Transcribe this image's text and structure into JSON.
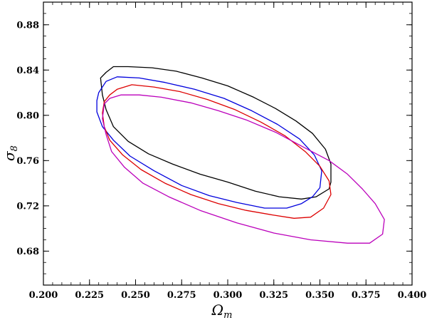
{
  "chart_data": {
    "type": "line",
    "title": "",
    "xlabel": "Ω",
    "xlabel_sub": "m",
    "ylabel": "σ",
    "ylabel_sub": "8",
    "xlim": [
      0.2,
      0.4
    ],
    "ylim": [
      0.65,
      0.9
    ],
    "x_ticks": [
      "0.200",
      "0.225",
      "0.250",
      "0.275",
      "0.300",
      "0.325",
      "0.350",
      "0.375",
      "0.400"
    ],
    "y_ticks": [
      "0.68",
      "0.72",
      "0.76",
      "0.80",
      "0.84",
      "0.88"
    ],
    "grid": false,
    "legend": "none",
    "series": [
      {
        "color": "#000000",
        "closed": true,
        "points": [
          [
            0.231,
            0.833
          ],
          [
            0.234,
            0.838
          ],
          [
            0.238,
            0.843
          ],
          [
            0.246,
            0.843
          ],
          [
            0.259,
            0.842
          ],
          [
            0.272,
            0.839
          ],
          [
            0.286,
            0.833
          ],
          [
            0.3,
            0.826
          ],
          [
            0.314,
            0.816
          ],
          [
            0.326,
            0.806
          ],
          [
            0.337,
            0.795
          ],
          [
            0.346,
            0.784
          ],
          [
            0.353,
            0.77
          ],
          [
            0.356,
            0.757
          ],
          [
            0.356,
            0.741
          ],
          [
            0.355,
            0.735
          ],
          [
            0.348,
            0.728
          ],
          [
            0.34,
            0.726
          ],
          [
            0.328,
            0.728
          ],
          [
            0.315,
            0.733
          ],
          [
            0.3,
            0.741
          ],
          [
            0.285,
            0.748
          ],
          [
            0.27,
            0.757
          ],
          [
            0.257,
            0.766
          ],
          [
            0.246,
            0.777
          ],
          [
            0.238,
            0.79
          ],
          [
            0.234,
            0.805
          ],
          [
            0.232,
            0.818
          ],
          [
            0.231,
            0.833
          ]
        ]
      },
      {
        "color": "#0000dd",
        "closed": true,
        "points": [
          [
            0.23,
            0.82
          ],
          [
            0.234,
            0.83
          ],
          [
            0.24,
            0.834
          ],
          [
            0.252,
            0.833
          ],
          [
            0.266,
            0.829
          ],
          [
            0.282,
            0.823
          ],
          [
            0.298,
            0.815
          ],
          [
            0.313,
            0.804
          ],
          [
            0.327,
            0.792
          ],
          [
            0.339,
            0.779
          ],
          [
            0.347,
            0.765
          ],
          [
            0.351,
            0.751
          ],
          [
            0.35,
            0.736
          ],
          [
            0.346,
            0.728
          ],
          [
            0.34,
            0.722
          ],
          [
            0.332,
            0.718
          ],
          [
            0.32,
            0.718
          ],
          [
            0.305,
            0.723
          ],
          [
            0.29,
            0.729
          ],
          [
            0.275,
            0.738
          ],
          [
            0.26,
            0.751
          ],
          [
            0.247,
            0.764
          ],
          [
            0.238,
            0.778
          ],
          [
            0.232,
            0.79
          ],
          [
            0.229,
            0.803
          ],
          [
            0.229,
            0.813
          ],
          [
            0.23,
            0.82
          ]
        ]
      },
      {
        "color": "#dd0000",
        "closed": true,
        "points": [
          [
            0.233,
            0.812
          ],
          [
            0.236,
            0.818
          ],
          [
            0.24,
            0.823
          ],
          [
            0.248,
            0.827
          ],
          [
            0.26,
            0.825
          ],
          [
            0.274,
            0.821
          ],
          [
            0.289,
            0.814
          ],
          [
            0.304,
            0.805
          ],
          [
            0.318,
            0.794
          ],
          [
            0.331,
            0.782
          ],
          [
            0.342,
            0.768
          ],
          [
            0.35,
            0.755
          ],
          [
            0.355,
            0.742
          ],
          [
            0.356,
            0.73
          ],
          [
            0.352,
            0.718
          ],
          [
            0.345,
            0.71
          ],
          [
            0.336,
            0.709
          ],
          [
            0.324,
            0.712
          ],
          [
            0.31,
            0.716
          ],
          [
            0.295,
            0.722
          ],
          [
            0.28,
            0.73
          ],
          [
            0.266,
            0.74
          ],
          [
            0.253,
            0.752
          ],
          [
            0.243,
            0.765
          ],
          [
            0.236,
            0.778
          ],
          [
            0.233,
            0.79
          ],
          [
            0.232,
            0.802
          ],
          [
            0.233,
            0.812
          ]
        ]
      },
      {
        "color": "#bb00bb",
        "closed": true,
        "points": [
          [
            0.233,
            0.81
          ],
          [
            0.236,
            0.815
          ],
          [
            0.242,
            0.818
          ],
          [
            0.252,
            0.818
          ],
          [
            0.264,
            0.816
          ],
          [
            0.28,
            0.811
          ],
          [
            0.295,
            0.804
          ],
          [
            0.31,
            0.796
          ],
          [
            0.326,
            0.785
          ],
          [
            0.341,
            0.772
          ],
          [
            0.355,
            0.76
          ],
          [
            0.365,
            0.748
          ],
          [
            0.373,
            0.735
          ],
          [
            0.38,
            0.722
          ],
          [
            0.385,
            0.708
          ],
          [
            0.384,
            0.695
          ],
          [
            0.377,
            0.687
          ],
          [
            0.365,
            0.687
          ],
          [
            0.345,
            0.69
          ],
          [
            0.325,
            0.696
          ],
          [
            0.305,
            0.705
          ],
          [
            0.285,
            0.716
          ],
          [
            0.268,
            0.728
          ],
          [
            0.254,
            0.74
          ],
          [
            0.244,
            0.754
          ],
          [
            0.237,
            0.768
          ],
          [
            0.234,
            0.783
          ],
          [
            0.232,
            0.797
          ],
          [
            0.233,
            0.81
          ]
        ]
      }
    ]
  }
}
